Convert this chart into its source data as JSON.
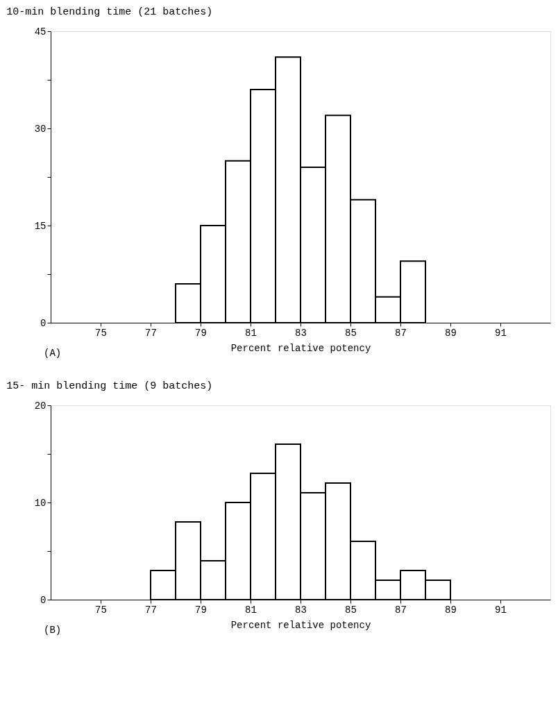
{
  "chart_data": [
    {
      "type": "histogram",
      "title": "10-min  blending time (21 batches)",
      "xlabel": "Percent relative potency",
      "annotations": [
        "(A)"
      ],
      "bins": [
        78,
        79,
        80,
        81,
        82,
        83,
        84,
        85,
        86,
        87,
        88
      ],
      "values": [
        6,
        15,
        25,
        36,
        41,
        24,
        32,
        19,
        4,
        9.5
      ],
      "color": "#ffffff",
      "xlim": [
        73,
        93
      ],
      "xticks": [
        75,
        77,
        79,
        81,
        83,
        85,
        87,
        89,
        91
      ],
      "ylim": [
        0,
        45
      ],
      "yticks": [
        0,
        {
          "value": 7.5,
          "label": null
        },
        15,
        {
          "value": 22.5,
          "label": null
        },
        30,
        {
          "value": 37.5,
          "label": null
        },
        45
      ],
      "grid": false
    },
    {
      "type": "histogram",
      "title": "15- min  blending time (9 batches)",
      "xlabel": "Percent relative potency",
      "annotations": [
        "(B)"
      ],
      "bins": [
        77,
        78,
        79,
        80,
        81,
        82,
        83,
        84,
        85,
        86,
        87,
        88,
        89
      ],
      "values": [
        3,
        8,
        4,
        10,
        13,
        16,
        11,
        12,
        6,
        2,
        3,
        2
      ],
      "color": "#ffffff",
      "xlim": [
        73,
        93
      ],
      "xticks": [
        75,
        77,
        79,
        81,
        83,
        85,
        87,
        89,
        91
      ],
      "ylim": [
        0,
        20
      ],
      "yticks": [
        0,
        {
          "value": 5,
          "label": null
        },
        10,
        {
          "value": 15,
          "label": null
        },
        20
      ],
      "grid": false
    }
  ]
}
